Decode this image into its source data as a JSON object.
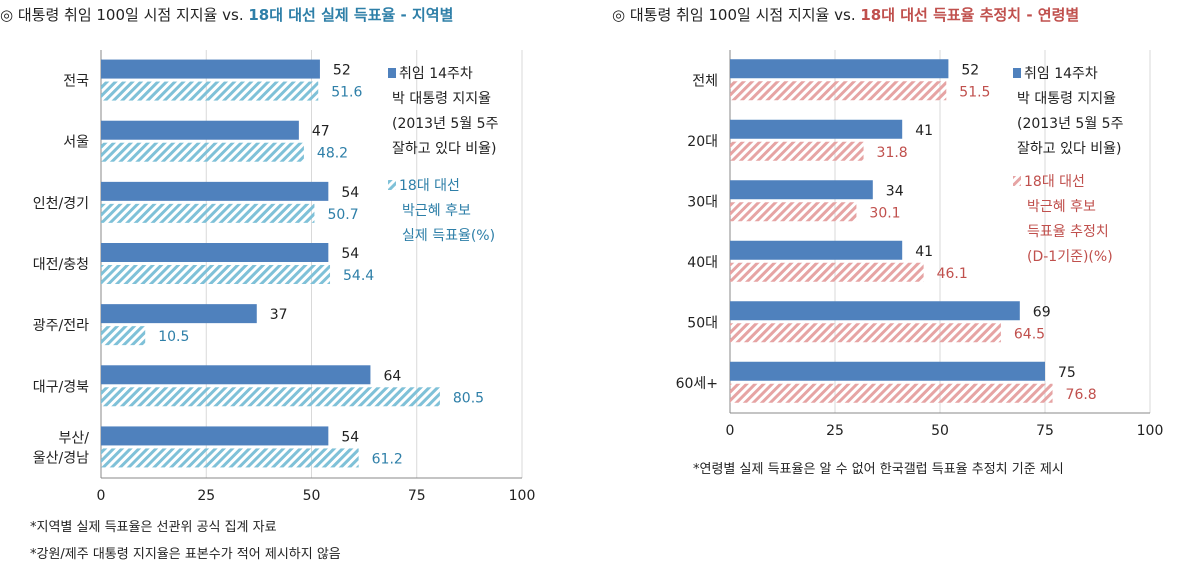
{
  "chart_data": [
    {
      "type": "bar",
      "orientation": "horizontal",
      "title_prefix": "◎ 대통령 취임 100일 시점 지지율 vs. ",
      "title_highlight": "18대 대선 실제 득표율 - 지역별",
      "categories": [
        "전국",
        "서울",
        "인천/경기",
        "대전/충청",
        "광주/전라",
        "대구/경북",
        "부산/\n울산/경남"
      ],
      "series": [
        {
          "name": "취임 14주차\n박 대통령 지지율\n(2013년 5월 5주\n잘하고 있다 비율)",
          "values": [
            52,
            47,
            54,
            54,
            37,
            64,
            54
          ],
          "color": "#4f81bd",
          "pattern": "solid"
        },
        {
          "name": "18대 대선\n박근혜 후보\n실제 득표율(%)",
          "values": [
            51.6,
            48.2,
            50.7,
            54.4,
            10.5,
            80.5,
            61.2
          ],
          "color": "#7fc1d8",
          "pattern": "hatch"
        }
      ],
      "xlim": [
        0,
        100
      ],
      "xticks": [
        0,
        25,
        50,
        75,
        100
      ],
      "grid": true,
      "legend_position": "right",
      "footnotes": [
        "*지역별 실제 득표율은 선관위 공식 집계 자료",
        "*강원/제주 대통령 지지율은 표본수가 적어 제시하지 않음"
      ]
    },
    {
      "type": "bar",
      "orientation": "horizontal",
      "title_prefix": "◎ 대통령 취임 100일 시점 지지율 vs. ",
      "title_highlight": "18대 대선 득표율 추정치 - 연령별",
      "categories": [
        "전체",
        "20대",
        "30대",
        "40대",
        "50대",
        "60세+"
      ],
      "series": [
        {
          "name": "취임 14주차\n박 대통령 지지율\n(2013년 5월 5주\n잘하고 있다 비율)",
          "values": [
            52,
            41,
            34,
            41,
            69,
            75
          ],
          "color": "#4f81bd",
          "pattern": "solid"
        },
        {
          "name": "18대 대선\n박근혜 후보\n득표율 추정치\n(D-1기준)(%)",
          "values": [
            51.5,
            31.8,
            30.1,
            46.1,
            64.5,
            76.8
          ],
          "color": "#e6a4a4",
          "pattern": "hatch"
        }
      ],
      "xlim": [
        0,
        100
      ],
      "xticks": [
        0,
        25,
        50,
        75,
        100
      ],
      "grid": true,
      "legend_position": "right",
      "footnotes": [
        "*연령별 실제 득표율은 알 수 없어 한국갤럽 득표율 추정치 기준 제시"
      ]
    }
  ],
  "colors": {
    "series1": "#4f81bd",
    "series2_left": "#7fc1d8",
    "series2_right": "#e6a4a4",
    "label_left": "#2e7fa8",
    "label_right": "#c0504d"
  }
}
